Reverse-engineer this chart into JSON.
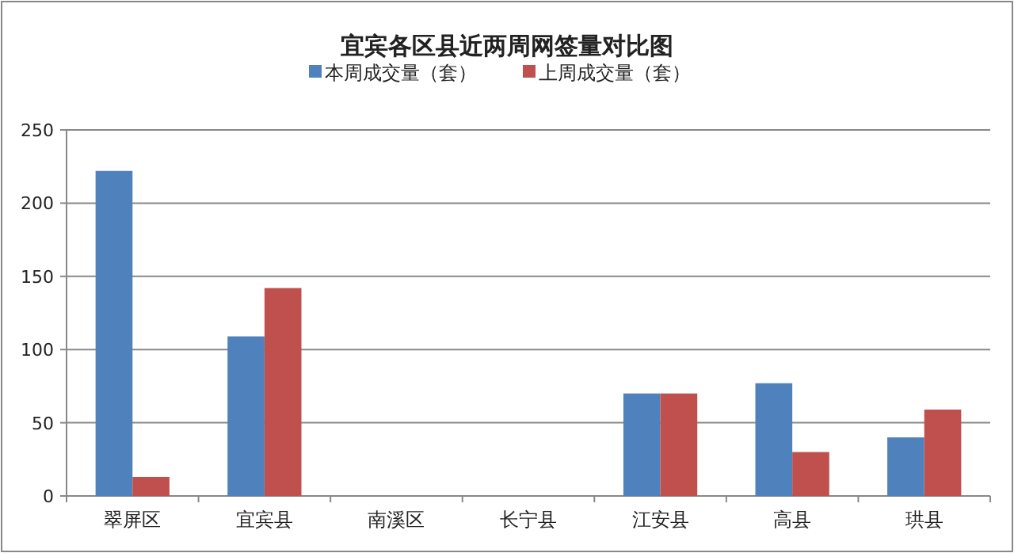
{
  "chart_data": {
    "type": "bar",
    "title": "宜宾各区县近两周网签量对比图",
    "categories": [
      "翠屏区",
      "宜宾县",
      "南溪区",
      "长宁县",
      "江安县",
      "高县",
      "珙县"
    ],
    "series": [
      {
        "name": "本周成交量（套）",
        "color": "#4f81bd",
        "values": [
          222,
          109,
          0,
          0,
          70,
          77,
          40
        ]
      },
      {
        "name": "上周成交量（套）",
        "color": "#c0504d",
        "values": [
          13,
          142,
          0,
          0,
          70,
          30,
          59
        ]
      }
    ],
    "ylim": [
      0,
      250
    ],
    "yticks": [
      0,
      50,
      100,
      150,
      200,
      250
    ],
    "grid": "y",
    "legend": "top"
  }
}
